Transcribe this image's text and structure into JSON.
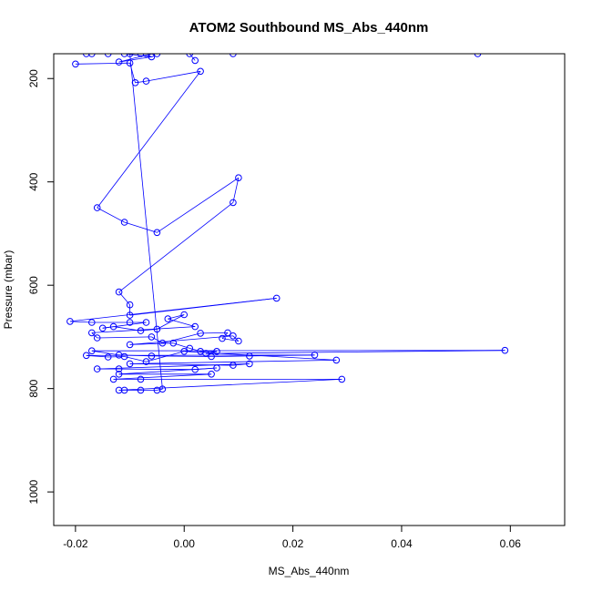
{
  "chart_data": {
    "type": "line",
    "title": "ATOM2 Southbound MS_Abs_440nm",
    "xlabel": "MS_Abs_440nm",
    "ylabel": "Pressure (mbar)",
    "xlim": [
      -0.024,
      0.07
    ],
    "ylim": [
      1065,
      152
    ],
    "y_reversed": true,
    "x_ticks": [
      -0.02,
      0.0,
      0.02,
      0.04,
      0.06
    ],
    "x_tick_labels": [
      "-0.02",
      "0.00",
      "0.02",
      "0.04",
      "0.06"
    ],
    "y_ticks": [
      200,
      400,
      600,
      800,
      1000
    ],
    "y_tick_labels": [
      "200",
      "400",
      "600",
      "800",
      "1000"
    ],
    "grid": false,
    "legend": "none",
    "color": "#0000ff",
    "series": [
      {
        "points": [
          [
            -0.02,
            172
          ],
          [
            -0.01,
            170
          ],
          [
            -0.009,
            208
          ],
          [
            -0.007,
            205
          ],
          [
            0.003,
            186
          ],
          [
            -0.016,
            450
          ],
          [
            -0.011,
            478
          ],
          [
            -0.005,
            498
          ],
          [
            0.01,
            392
          ],
          [
            0.009,
            440
          ],
          [
            -0.012,
            613
          ],
          [
            -0.01,
            638
          ],
          [
            -0.01,
            658
          ],
          [
            0.017,
            625
          ],
          [
            -0.021,
            670
          ],
          [
            -0.017,
            672
          ],
          [
            -0.01,
            672
          ],
          [
            -0.007,
            672
          ],
          [
            -0.015,
            683
          ],
          [
            -0.013,
            680
          ],
          [
            -0.008,
            688
          ],
          [
            -0.005,
            685
          ],
          [
            0.0,
            657
          ],
          [
            -0.003,
            665
          ],
          [
            0.002,
            680
          ],
          [
            -0.017,
            692
          ],
          [
            -0.016,
            702
          ],
          [
            -0.006,
            700
          ],
          [
            -0.004,
            712
          ],
          [
            0.003,
            693
          ],
          [
            0.008,
            692
          ],
          [
            0.007,
            703
          ],
          [
            0.01,
            708
          ],
          [
            0.009,
            698
          ],
          [
            -0.01,
            715
          ],
          [
            -0.002,
            712
          ],
          [
            0.001,
            722
          ],
          [
            0.003,
            728
          ],
          [
            0.006,
            728
          ],
          [
            0.004,
            732
          ],
          [
            0.059,
            726
          ],
          [
            -0.017,
            727
          ],
          [
            -0.012,
            735
          ],
          [
            -0.006,
            737
          ],
          [
            0.005,
            738
          ],
          [
            0.012,
            737
          ],
          [
            0.024,
            735
          ],
          [
            -0.018,
            736
          ],
          [
            -0.014,
            739
          ],
          [
            -0.011,
            738
          ],
          [
            -0.007,
            748
          ],
          [
            0.0,
            728
          ],
          [
            0.028,
            745
          ],
          [
            -0.01,
            752
          ],
          [
            0.009,
            755
          ],
          [
            0.012,
            752
          ],
          [
            -0.016,
            762
          ],
          [
            -0.012,
            762
          ],
          [
            0.002,
            763
          ],
          [
            0.006,
            760
          ],
          [
            -0.012,
            772
          ],
          [
            0.005,
            772
          ],
          [
            -0.013,
            782
          ],
          [
            -0.008,
            782
          ],
          [
            0.029,
            782
          ],
          [
            -0.012,
            803
          ],
          [
            -0.011,
            803
          ],
          [
            -0.008,
            803
          ],
          [
            -0.005,
            803
          ],
          [
            -0.004,
            801
          ],
          [
            -0.01,
            152
          ],
          [
            -0.014,
            152
          ],
          [
            -0.007,
            152
          ],
          [
            -0.005,
            152
          ],
          [
            -0.017,
            152
          ],
          [
            0.009,
            152
          ],
          [
            0.054,
            152
          ],
          [
            -0.018,
            152
          ],
          [
            -0.008,
            152
          ],
          [
            -0.011,
            152
          ],
          [
            -0.006,
            158
          ],
          [
            -0.012,
            168
          ],
          [
            -0.006,
            152
          ],
          [
            0.001,
            152
          ],
          [
            0.002,
            165
          ]
        ]
      }
    ]
  }
}
